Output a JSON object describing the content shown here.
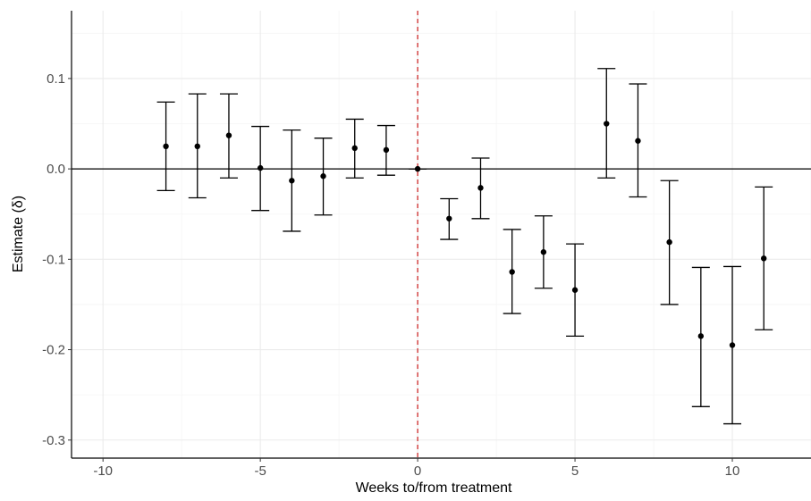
{
  "chart_data": {
    "type": "scatter",
    "subtype": "event-study coefficient plot with 95% error bars",
    "title": "",
    "xlabel": "Weeks to/from treatment",
    "ylabel": "Estimate (δ)",
    "xlim": [
      -11,
      12.5
    ],
    "ylim": [
      -0.32,
      0.175
    ],
    "x_ticks": [
      -10,
      -5,
      0,
      5,
      10
    ],
    "x_tick_labels": [
      "-10",
      "-5",
      "0",
      "5",
      "10"
    ],
    "y_ticks": [
      -0.3,
      -0.2,
      -0.1,
      0.0,
      0.1
    ],
    "y_tick_labels": [
      "-0.3",
      "-0.2",
      "-0.1",
      "0.0",
      "0.1"
    ],
    "grid": true,
    "reference_lines": {
      "horizontal_y": 0,
      "horizontal_color": "#000000",
      "vertical_x": 0,
      "vertical_color": "#cc2a2a",
      "vertical_style": "dashed"
    },
    "points": [
      {
        "x": -8,
        "y": 0.025,
        "lower": -0.024,
        "upper": 0.074
      },
      {
        "x": -7,
        "y": 0.025,
        "lower": -0.032,
        "upper": 0.083
      },
      {
        "x": -6,
        "y": 0.037,
        "lower": -0.01,
        "upper": 0.083
      },
      {
        "x": -5,
        "y": 0.001,
        "lower": -0.046,
        "upper": 0.047
      },
      {
        "x": -4,
        "y": -0.013,
        "lower": -0.069,
        "upper": 0.043
      },
      {
        "x": -3,
        "y": -0.008,
        "lower": -0.051,
        "upper": 0.034
      },
      {
        "x": -2,
        "y": 0.023,
        "lower": -0.01,
        "upper": 0.055
      },
      {
        "x": -1,
        "y": 0.021,
        "lower": -0.007,
        "upper": 0.048
      },
      {
        "x": 0,
        "y": 0.0,
        "lower": 0.0,
        "upper": 0.0
      },
      {
        "x": 1,
        "y": -0.055,
        "lower": -0.078,
        "upper": -0.033
      },
      {
        "x": 2,
        "y": -0.021,
        "lower": -0.055,
        "upper": 0.012
      },
      {
        "x": 3,
        "y": -0.114,
        "lower": -0.16,
        "upper": -0.067
      },
      {
        "x": 4,
        "y": -0.092,
        "lower": -0.132,
        "upper": -0.052
      },
      {
        "x": 5,
        "y": -0.134,
        "lower": -0.185,
        "upper": -0.083
      },
      {
        "x": 6,
        "y": 0.05,
        "lower": -0.01,
        "upper": 0.111
      },
      {
        "x": 7,
        "y": 0.031,
        "lower": -0.031,
        "upper": 0.094
      },
      {
        "x": 8,
        "y": -0.081,
        "lower": -0.15,
        "upper": -0.013
      },
      {
        "x": 9,
        "y": -0.185,
        "lower": -0.263,
        "upper": -0.109
      },
      {
        "x": 10,
        "y": -0.195,
        "lower": -0.282,
        "upper": -0.108
      },
      {
        "x": 11,
        "y": -0.099,
        "lower": -0.178,
        "upper": -0.02
      }
    ],
    "colors": {
      "point": "#000000",
      "errorbar": "#000000",
      "grid_major": "#ebebeb",
      "grid_minor": "#f5f5f5",
      "axis": "#000000"
    }
  }
}
